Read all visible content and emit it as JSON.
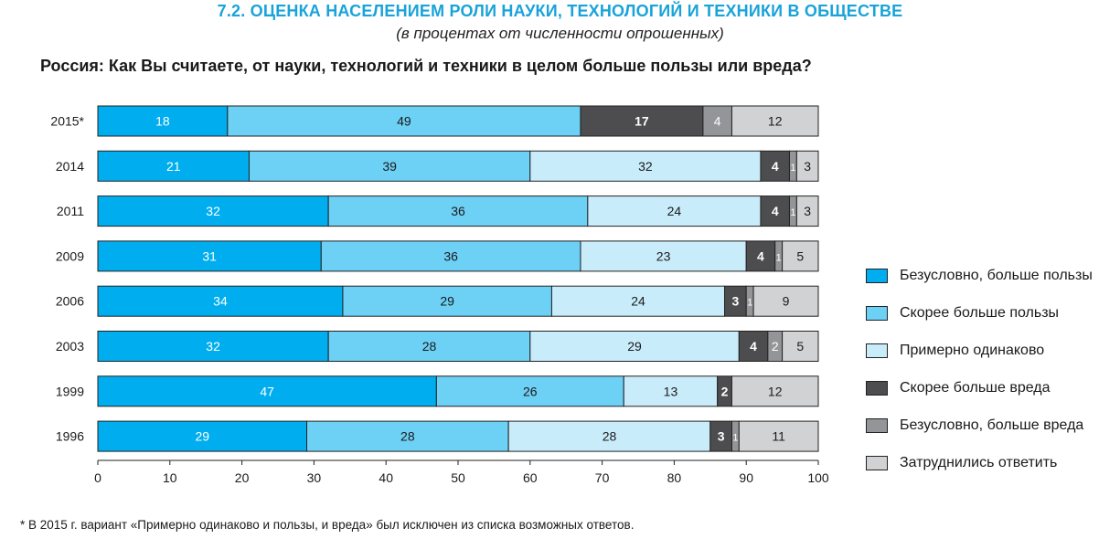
{
  "header": {
    "title": "7.2. ОЦЕНКА НАСЕЛЕНИЕМ РОЛИ НАУКИ, ТЕХНОЛОГИЙ И ТЕХНИКИ В ОБЩЕСТВЕ",
    "subtitle": "(в процентах от численности опрошенных)",
    "question": "Россия: Как Вы считаете, от науки, технологий и техники в целом больше пользы или вреда?"
  },
  "footnote": "* В 2015 г. вариант «Примерно одинаково и пользы, и вреда» был исключен из списка возможных ответов.",
  "colors": {
    "Безусловно, больше пользы": "#00aeef",
    "Скорее больше пользы": "#6dd0f5",
    "Примерно одинаково": "#c9ecfb",
    "Скорее больше вреда": "#4d4d4f",
    "Безусловно, больше вреда": "#939598",
    "Затруднились ответить": "#d1d2d4"
  },
  "chart_data": {
    "type": "bar",
    "orientation": "horizontal",
    "stacked": true,
    "categories": [
      "2015*",
      "2014",
      "2011",
      "2009",
      "2006",
      "2003",
      "1999",
      "1996"
    ],
    "series": [
      {
        "name": "Безусловно, больше пользы",
        "values": [
          18,
          21,
          32,
          31,
          34,
          32,
          47,
          29
        ]
      },
      {
        "name": "Скорее больше пользы",
        "values": [
          49,
          39,
          36,
          36,
          29,
          28,
          26,
          28
        ]
      },
      {
        "name": "Примерно одинаково",
        "values": [
          0,
          32,
          24,
          23,
          24,
          29,
          13,
          28
        ]
      },
      {
        "name": "Скорее больше вреда",
        "values": [
          17,
          4,
          4,
          4,
          3,
          4,
          2,
          3
        ]
      },
      {
        "name": "Безусловно, больше вреда",
        "values": [
          4,
          1,
          1,
          1,
          1,
          2,
          0,
          1
        ]
      },
      {
        "name": "Затруднились ответить",
        "values": [
          12,
          3,
          3,
          5,
          9,
          5,
          12,
          11
        ]
      }
    ],
    "xlim": [
      0,
      100
    ],
    "xticks": [
      0,
      10,
      20,
      30,
      40,
      50,
      60,
      70,
      80,
      90,
      100
    ],
    "legend_position": "right",
    "grid": false
  }
}
